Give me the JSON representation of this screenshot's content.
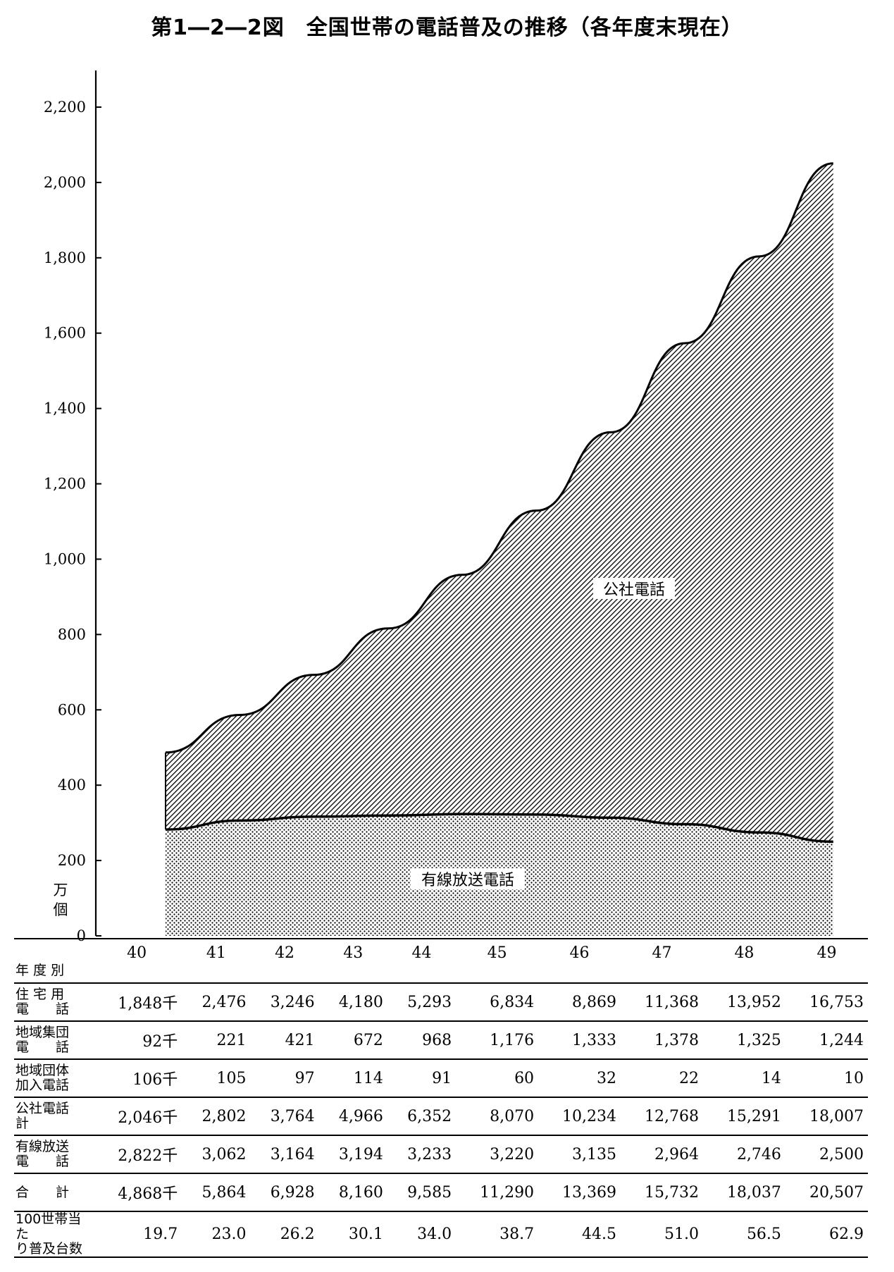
{
  "title": "第1―2―2図　全国世帯の電話普及の推移（各年度末現在）",
  "chart_data": {
    "type": "area",
    "stacked": true,
    "unit_label": [
      "万",
      "個"
    ],
    "yticks": [
      "0",
      "200",
      "400",
      "600",
      "800",
      "1,000",
      "1,200",
      "1,400",
      "1,600",
      "1,800",
      "2,000",
      "2,200"
    ],
    "ylim": [
      0,
      2200
    ],
    "categories": [
      "40",
      "41",
      "42",
      "43",
      "44",
      "45",
      "46",
      "47",
      "48",
      "49"
    ],
    "series": [
      {
        "name": "有線放送電話",
        "values": [
          282.2,
          306.2,
          316.4,
          319.4,
          323.3,
          322.0,
          313.5,
          296.4,
          274.6,
          250.0
        ],
        "fill": "dots"
      },
      {
        "name": "公社電話",
        "values": [
          204.6,
          280.2,
          376.4,
          496.6,
          635.2,
          807.0,
          1023.4,
          1276.8,
          1529.1,
          1800.7
        ],
        "fill": "hatch"
      }
    ]
  },
  "table": {
    "header_label": "年 度 別",
    "years": [
      "40",
      "41",
      "42",
      "43",
      "44",
      "45",
      "46",
      "47",
      "48",
      "49"
    ],
    "rows": [
      {
        "label": [
          "住 宅 用",
          "電　　話"
        ],
        "values": [
          "1,848千",
          "2,476",
          "3,246",
          "4,180",
          "5,293",
          "6,834",
          "8,869",
          "11,368",
          "13,952",
          "16,753"
        ]
      },
      {
        "label": [
          "地域集団",
          "電　　話"
        ],
        "values": [
          "92千",
          "221",
          "421",
          "672",
          "968",
          "1,176",
          "1,333",
          "1,378",
          "1,325",
          "1,244"
        ]
      },
      {
        "label": [
          "地域団体",
          "加入電話"
        ],
        "values": [
          "106千",
          "105",
          "97",
          "114",
          "91",
          "60",
          "32",
          "22",
          "14",
          "10"
        ]
      },
      {
        "label": [
          "公社電話",
          "計"
        ],
        "values": [
          "2,046千",
          "2,802",
          "3,764",
          "4,966",
          "6,352",
          "8,070",
          "10,234",
          "12,768",
          "15,291",
          "18,007"
        ]
      },
      {
        "label": [
          "有線放送",
          "電　　話"
        ],
        "values": [
          "2,822千",
          "3,062",
          "3,164",
          "3,194",
          "3,233",
          "3,220",
          "3,135",
          "2,964",
          "2,746",
          "2,500"
        ]
      },
      {
        "label": [
          "合　　計"
        ],
        "values": [
          "4,868千",
          "5,864",
          "6,928",
          "8,160",
          "9,585",
          "11,290",
          "13,369",
          "15,732",
          "18,037",
          "20,507"
        ]
      },
      {
        "label": [
          "100世帯当た",
          "り普及台数"
        ],
        "values": [
          "19.7",
          "23.0",
          "26.2",
          "30.1",
          "34.0",
          "38.7",
          "44.5",
          "51.0",
          "56.5",
          "62.9"
        ]
      }
    ]
  }
}
